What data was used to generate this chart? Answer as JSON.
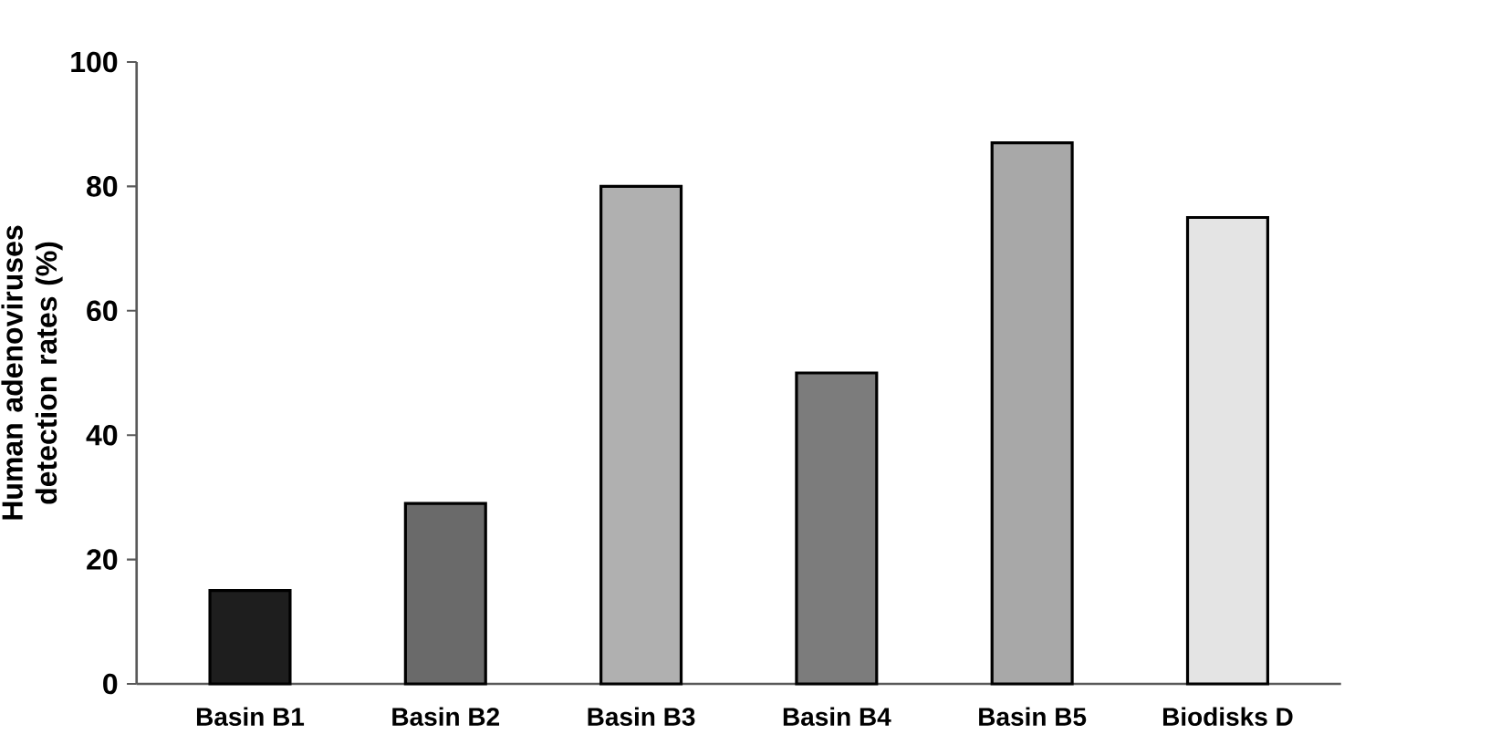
{
  "chart_data": {
    "type": "bar",
    "ylabel": "Human adenoviruses detection rates (%)",
    "categories": [
      "Basin B1",
      "Basin B2",
      "Basin B3",
      "Basin B4",
      "Basin B5",
      "Biodisks D"
    ],
    "values": [
      15,
      29,
      80,
      50,
      87,
      75
    ],
    "colors": [
      "#1e1e1e",
      "#6a6a6a",
      "#b0b0b0",
      "#7c7c7c",
      "#a8a8a8",
      "#e4e4e4"
    ],
    "ylim": [
      0,
      100
    ],
    "yticks": [
      0,
      20,
      40,
      60,
      80,
      100
    ]
  }
}
